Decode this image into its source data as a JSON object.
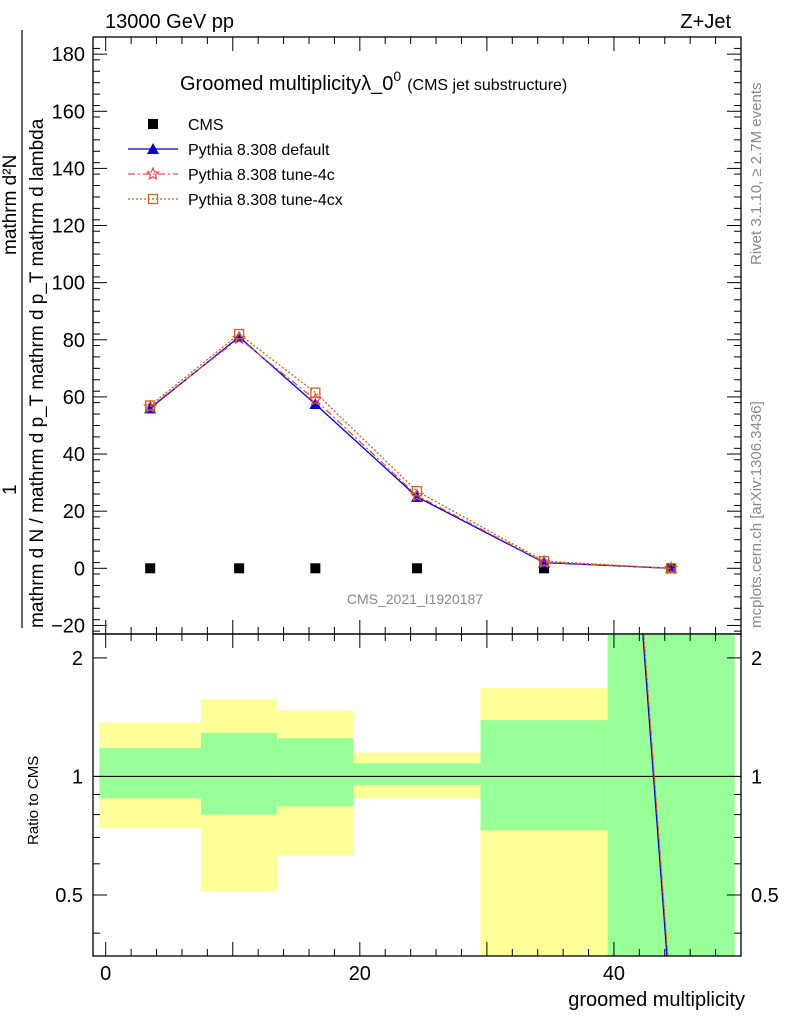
{
  "header": {
    "left": "13000 GeV pp",
    "right": "Z+Jet"
  },
  "side_labels": {
    "rivet": "Rivet 3.1.10, ≥ 2.7M events",
    "mcplots": "mcplots.cern.ch [arXiv:1306.3436]"
  },
  "watermark": "CMS_2021_I1920187",
  "chart_data": [
    {
      "type": "line",
      "title": "Groomed multiplicityλ_0",
      "title_superscript": "0",
      "subtitle": "(CMS jet substructure)",
      "ylabel_numerator": "1",
      "ylabel_denominator": "mathrm d N / mathrm d p_T mathrm d p_T mathrm d lambda",
      "ylabel_right_numerator": "mathrm d²N",
      "ylabel_right_denominator": "mathrm d p_T mathrm d p_T mathrm d lambda",
      "xlabel": "groomed multiplicity",
      "xlim": [
        -1,
        50
      ],
      "ylim": [
        -23,
        186
      ],
      "yticks": [
        -20,
        0,
        20,
        40,
        60,
        80,
        100,
        120,
        140,
        160,
        180
      ],
      "legend_position": "top-left",
      "series": [
        {
          "name": "CMS",
          "style": "square-marker",
          "color": "#000000",
          "x": [
            3.5,
            10.5,
            16.5,
            24.5,
            34.5,
            44.5
          ],
          "y": [
            0,
            0,
            0,
            0,
            0,
            0
          ]
        },
        {
          "name": "Pythia 8.308 default",
          "style": "solid-triangle",
          "color": "#0000cc",
          "x": [
            3.5,
            10.5,
            16.5,
            24.5,
            34.5,
            44.5
          ],
          "y": [
            56,
            81,
            57.5,
            25,
            2,
            0
          ]
        },
        {
          "name": "Pythia 8.308 tune-4c",
          "style": "dashdot-star",
          "color": "#e05050",
          "x": [
            3.5,
            10.5,
            16.5,
            24.5,
            34.5,
            44.5
          ],
          "y": [
            56.5,
            80.5,
            59,
            25.5,
            2.2,
            0
          ]
        },
        {
          "name": "Pythia 8.308 tune-4cx",
          "style": "dotted-open-square",
          "color": "#c8642a",
          "x": [
            3.5,
            10.5,
            16.5,
            24.5,
            34.5,
            44.5
          ],
          "y": [
            57,
            82,
            61.5,
            27,
            2.5,
            0
          ]
        }
      ]
    },
    {
      "type": "area",
      "ylabel": "Ratio to CMS",
      "xlabel": "groomed multiplicity",
      "xlim": [
        -1,
        50
      ],
      "ylim": [
        0.35,
        2.3
      ],
      "yticks": [
        0.5,
        1,
        2
      ],
      "xticks": [
        0,
        20,
        40
      ],
      "bins": [
        {
          "x0": -0.5,
          "x1": 7.5,
          "green": [
            0.88,
            1.18
          ],
          "yellow": [
            0.74,
            1.37
          ]
        },
        {
          "x0": 7.5,
          "x1": 13.5,
          "green": [
            0.8,
            1.29
          ],
          "yellow": [
            0.51,
            1.57
          ]
        },
        {
          "x0": 13.5,
          "x1": 19.5,
          "green": [
            0.84,
            1.25
          ],
          "yellow": [
            0.63,
            1.47
          ]
        },
        {
          "x0": 19.5,
          "x1": 29.5,
          "green": [
            0.95,
            1.08
          ],
          "yellow": [
            0.88,
            1.15
          ]
        },
        {
          "x0": 29.5,
          "x1": 39.5,
          "green": [
            0.73,
            1.39
          ],
          "yellow": [
            0.35,
            1.68
          ]
        },
        {
          "x0": 39.5,
          "x1": 49.5,
          "green": [
            0.35,
            2.3
          ],
          "yellow": [
            0.35,
            2.3
          ]
        }
      ],
      "green_color": "#99ff99",
      "yellow_color": "#ffff99",
      "ratio_line": {
        "x": [
          42.3,
          44.2
        ],
        "y": [
          2.3,
          0.35
        ]
      }
    }
  ]
}
